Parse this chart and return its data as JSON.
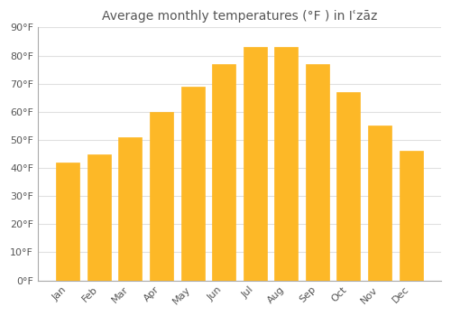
{
  "title": "Average monthly temperatures (°F ) in Iʿzāz",
  "months": [
    "Jan",
    "Feb",
    "Mar",
    "Apr",
    "May",
    "Jun",
    "Jul",
    "Aug",
    "Sep",
    "Oct",
    "Nov",
    "Dec"
  ],
  "values": [
    42,
    45,
    51,
    60,
    69,
    77,
    83,
    83,
    77,
    67,
    55,
    46
  ],
  "bar_color": "#FDB827",
  "bar_edge_color": "#FDB827",
  "background_color": "#FFFFFF",
  "grid_color": "#E0E0E0",
  "text_color": "#555555",
  "ylim": [
    0,
    90
  ],
  "yticks": [
    0,
    10,
    20,
    30,
    40,
    50,
    60,
    70,
    80,
    90
  ],
  "title_fontsize": 10,
  "tick_fontsize": 8,
  "bar_width": 0.75
}
